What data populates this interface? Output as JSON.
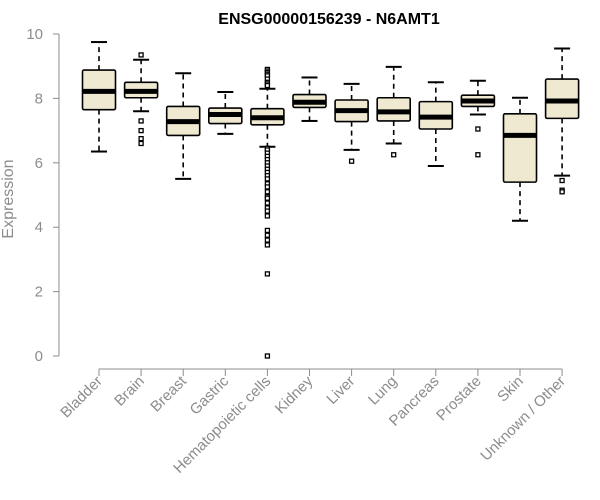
{
  "chart_data": {
    "type": "boxplot",
    "title": "ENSG00000156239 - N6AMT1",
    "xlabel": "",
    "ylabel": "Expression",
    "ylim": [
      0,
      10
    ],
    "yticks": [
      "0",
      "2",
      "4",
      "6",
      "8",
      "10"
    ],
    "categories": [
      "Bladder",
      "Brain",
      "Breast",
      "Gastric",
      "Hematopoietic cells",
      "Kidney",
      "Liver",
      "Lung",
      "Pancreas",
      "Prostate",
      "Skin",
      "Unknown / Other"
    ],
    "boxes": [
      {
        "name": "Bladder",
        "whisker_low": 6.35,
        "q1": 7.65,
        "median": 8.22,
        "q3": 8.88,
        "whisker_high": 9.75,
        "outliers": []
      },
      {
        "name": "Brain",
        "whisker_low": 7.6,
        "q1": 8.02,
        "median": 8.22,
        "q3": 8.5,
        "whisker_high": 9.2,
        "outliers": [
          9.35,
          7.3,
          7.0,
          6.75,
          6.6
        ]
      },
      {
        "name": "Breast",
        "whisker_low": 5.5,
        "q1": 6.85,
        "median": 7.28,
        "q3": 7.75,
        "whisker_high": 8.78,
        "outliers": []
      },
      {
        "name": "Gastric",
        "whisker_low": 6.9,
        "q1": 7.22,
        "median": 7.5,
        "q3": 7.7,
        "whisker_high": 8.2,
        "outliers": []
      },
      {
        "name": "Hematopoietic cells",
        "whisker_low": 6.5,
        "q1": 7.18,
        "median": 7.4,
        "q3": 7.68,
        "whisker_high": 8.3,
        "outliers": [
          8.9,
          8.85,
          8.8,
          8.75,
          8.7,
          8.6,
          8.5,
          8.45,
          8.4,
          6.45,
          6.4,
          6.3,
          6.2,
          6.1,
          6.0,
          5.9,
          5.8,
          5.7,
          5.6,
          5.5,
          5.35,
          5.25,
          5.1,
          4.95,
          4.9,
          4.75,
          4.6,
          4.5,
          4.35,
          3.9,
          3.75,
          3.6,
          3.45,
          2.55,
          0.0
        ]
      },
      {
        "name": "Kidney",
        "whisker_low": 7.3,
        "q1": 7.72,
        "median": 7.88,
        "q3": 8.12,
        "whisker_high": 8.65,
        "outliers": []
      },
      {
        "name": "Liver",
        "whisker_low": 6.4,
        "q1": 7.28,
        "median": 7.62,
        "q3": 7.95,
        "whisker_high": 8.45,
        "outliers": [
          6.05
        ]
      },
      {
        "name": "Lung",
        "whisker_low": 6.6,
        "q1": 7.3,
        "median": 7.58,
        "q3": 8.02,
        "whisker_high": 8.98,
        "outliers": [
          6.25
        ]
      },
      {
        "name": "Pancreas",
        "whisker_low": 5.9,
        "q1": 7.05,
        "median": 7.42,
        "q3": 7.9,
        "whisker_high": 8.5,
        "outliers": []
      },
      {
        "name": "Prostate",
        "whisker_low": 7.5,
        "q1": 7.75,
        "median": 7.92,
        "q3": 8.1,
        "whisker_high": 8.55,
        "outliers": [
          7.05,
          6.25
        ]
      },
      {
        "name": "Skin",
        "whisker_low": 4.2,
        "q1": 5.4,
        "median": 6.85,
        "q3": 7.52,
        "whisker_high": 8.02,
        "outliers": []
      },
      {
        "name": "Unknown / Other",
        "whisker_low": 5.6,
        "q1": 7.38,
        "median": 7.92,
        "q3": 8.6,
        "whisker_high": 9.55,
        "outliers": [
          5.45,
          5.15,
          5.1
        ]
      }
    ],
    "box_fill": "#efe9d2",
    "box_stroke": "#000000",
    "axis_color": "#8c8c8c",
    "grid": false
  }
}
